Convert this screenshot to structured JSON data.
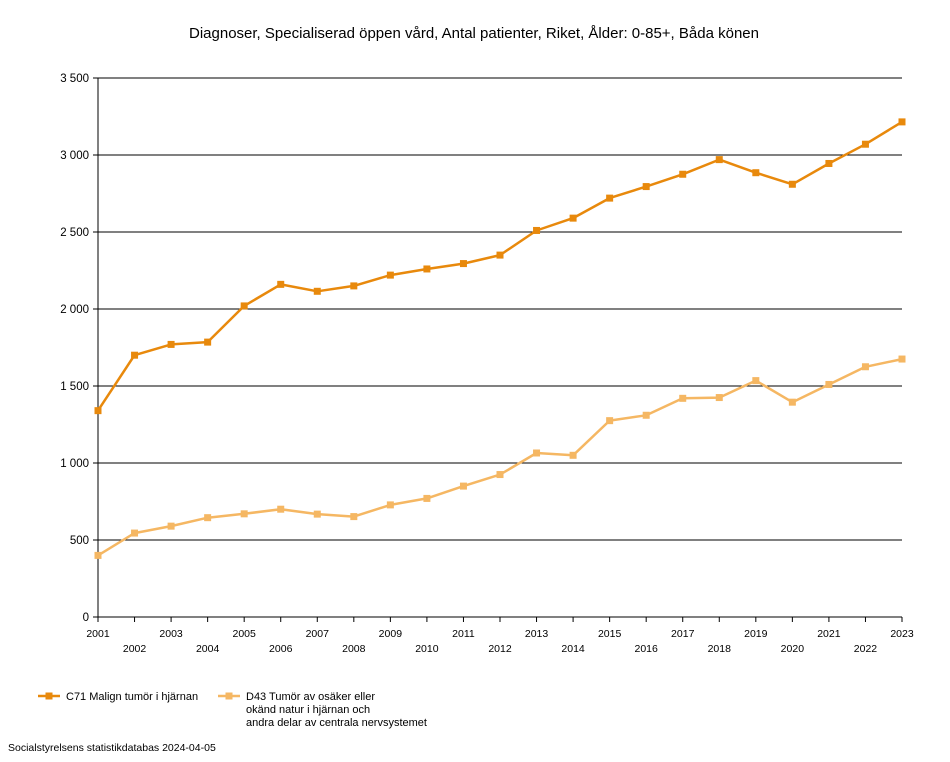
{
  "chart_data": {
    "type": "line",
    "title": "Diagnoser, Specialiserad öppen vård, Antal patienter, Riket, Ålder: 0-85+, Båda könen",
    "xlabel": "",
    "ylabel": "",
    "x": [
      "2001",
      "2002",
      "2003",
      "2004",
      "2005",
      "2006",
      "2007",
      "2008",
      "2009",
      "2010",
      "2011",
      "2012",
      "2013",
      "2014",
      "2015",
      "2016",
      "2017",
      "2018",
      "2019",
      "2020",
      "2021",
      "2022",
      "2023"
    ],
    "ylim": [
      0,
      3500
    ],
    "yticks": [
      0,
      500,
      1000,
      1500,
      2000,
      2500,
      3000,
      3500
    ],
    "ytick_labels": [
      "0",
      "500",
      "1 000",
      "1 500",
      "2 000",
      "2 500",
      "3 000",
      "3 500"
    ],
    "grid": "horizontal",
    "legend_position": "bottom",
    "series": [
      {
        "name": "C71 Malign tumör i hjärnan",
        "color": "#e8890c",
        "values": [
          1340,
          1700,
          1770,
          1785,
          2020,
          2160,
          2115,
          2150,
          2220,
          2260,
          2295,
          2350,
          2510,
          2590,
          2720,
          2795,
          2875,
          2970,
          2885,
          2810,
          2945,
          3070,
          3215
        ]
      },
      {
        "name": "D43 Tumör av osäker eller okänd natur i hjärnan och andra delar av centrala nervsystemet",
        "name_lines": [
          "D43 Tumör av osäker eller",
          "okänd natur i hjärnan och",
          "andra delar av centrala nervsystemet"
        ],
        "color": "#f5b763",
        "values": [
          400,
          545,
          590,
          645,
          670,
          700,
          668,
          652,
          728,
          770,
          850,
          925,
          1065,
          1050,
          1275,
          1310,
          1420,
          1425,
          1535,
          1395,
          1510,
          1625,
          1675
        ]
      }
    ]
  },
  "source": "Socialstyrelsens statistikdatabas 2024-04-05"
}
